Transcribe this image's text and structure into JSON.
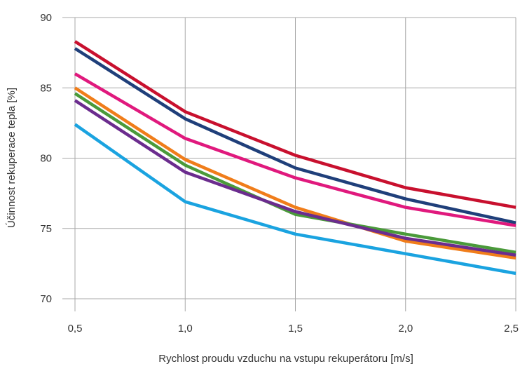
{
  "chart_data": {
    "type": "line",
    "title": "",
    "xlabel": "Rychlost proudu vzduchu na vstupu rekuperátoru [m/s]",
    "ylabel": "Účinnost rekuperace tepla [%]",
    "x": [
      0.5,
      1.0,
      1.5,
      2.0,
      2.5
    ],
    "x_tick_labels": [
      "0,5",
      "1,0",
      "1,5",
      "2,0",
      "2,5"
    ],
    "xlim": [
      0.5,
      2.5
    ],
    "y_ticks": [
      70,
      75,
      80,
      85,
      90
    ],
    "y_tick_labels": [
      "70",
      "75",
      "80",
      "85",
      "90"
    ],
    "ylim": [
      70,
      90
    ],
    "grid": true,
    "legend": "none",
    "series": [
      {
        "color": "#c8102e",
        "values": [
          88.3,
          83.3,
          80.2,
          77.9,
          76.5
        ]
      },
      {
        "color": "#1f3f7a",
        "values": [
          87.8,
          82.8,
          79.3,
          77.1,
          75.4
        ]
      },
      {
        "color": "#e0197d",
        "values": [
          86.0,
          81.4,
          78.6,
          76.5,
          75.2
        ]
      },
      {
        "color": "#f07d1a",
        "values": [
          85.0,
          79.9,
          76.5,
          74.1,
          72.9
        ]
      },
      {
        "color": "#4a9a3a",
        "values": [
          84.6,
          79.5,
          76.0,
          74.6,
          73.3
        ]
      },
      {
        "color": "#6b2c8e",
        "values": [
          84.1,
          79.0,
          76.2,
          74.3,
          73.1
        ]
      },
      {
        "color": "#1aa3e0",
        "values": [
          82.4,
          76.9,
          74.6,
          73.2,
          71.8
        ]
      }
    ]
  }
}
